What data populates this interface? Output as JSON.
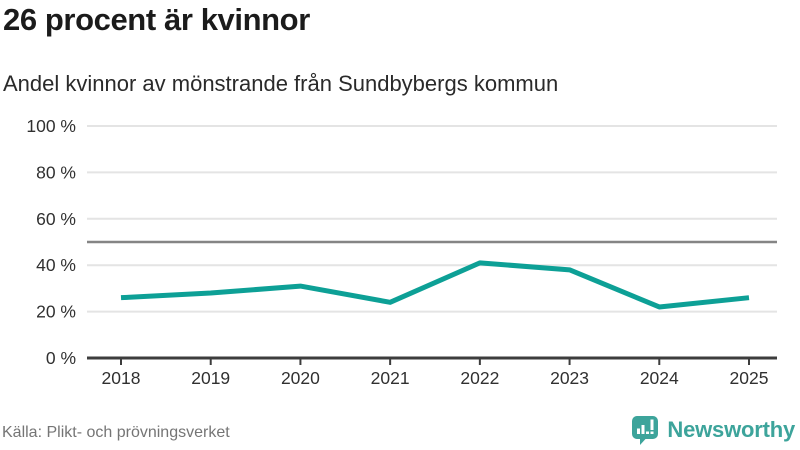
{
  "title": "26 procent är kvinnor",
  "subtitle": "Andel kvinnor av mönstrande från Sundbybergs kommun",
  "chart_data": {
    "type": "line",
    "title": "26 procent är kvinnor",
    "subtitle": "Andel kvinnor av mönstrande från Sundbybergs kommun",
    "categories": [
      "2018",
      "2019",
      "2020",
      "2021",
      "2022",
      "2023",
      "2024",
      "2025"
    ],
    "series": [
      {
        "name": "Andel kvinnor av mönstrande",
        "values": [
          26,
          28,
          31,
          24,
          41,
          38,
          22,
          26
        ]
      }
    ],
    "unit": "%",
    "ylim": [
      0,
      100
    ],
    "yticks": [
      0,
      20,
      40,
      60,
      80,
      100
    ],
    "ytick_labels": [
      "0 %",
      "20 %",
      "40 %",
      "60 %",
      "80 %",
      "100 %"
    ],
    "reference_line": 50,
    "grid": true,
    "legend": "none",
    "line_color": "#0da096",
    "reference_color": "#858585",
    "grid_color": "#e4e4e4",
    "axis_color": "#3d3d3d",
    "label_color": "#303030"
  },
  "footer": {
    "source": "Källa: Plikt- och prövningsverket",
    "brand": "Newsworthy",
    "brand_color": "#3da49b"
  }
}
